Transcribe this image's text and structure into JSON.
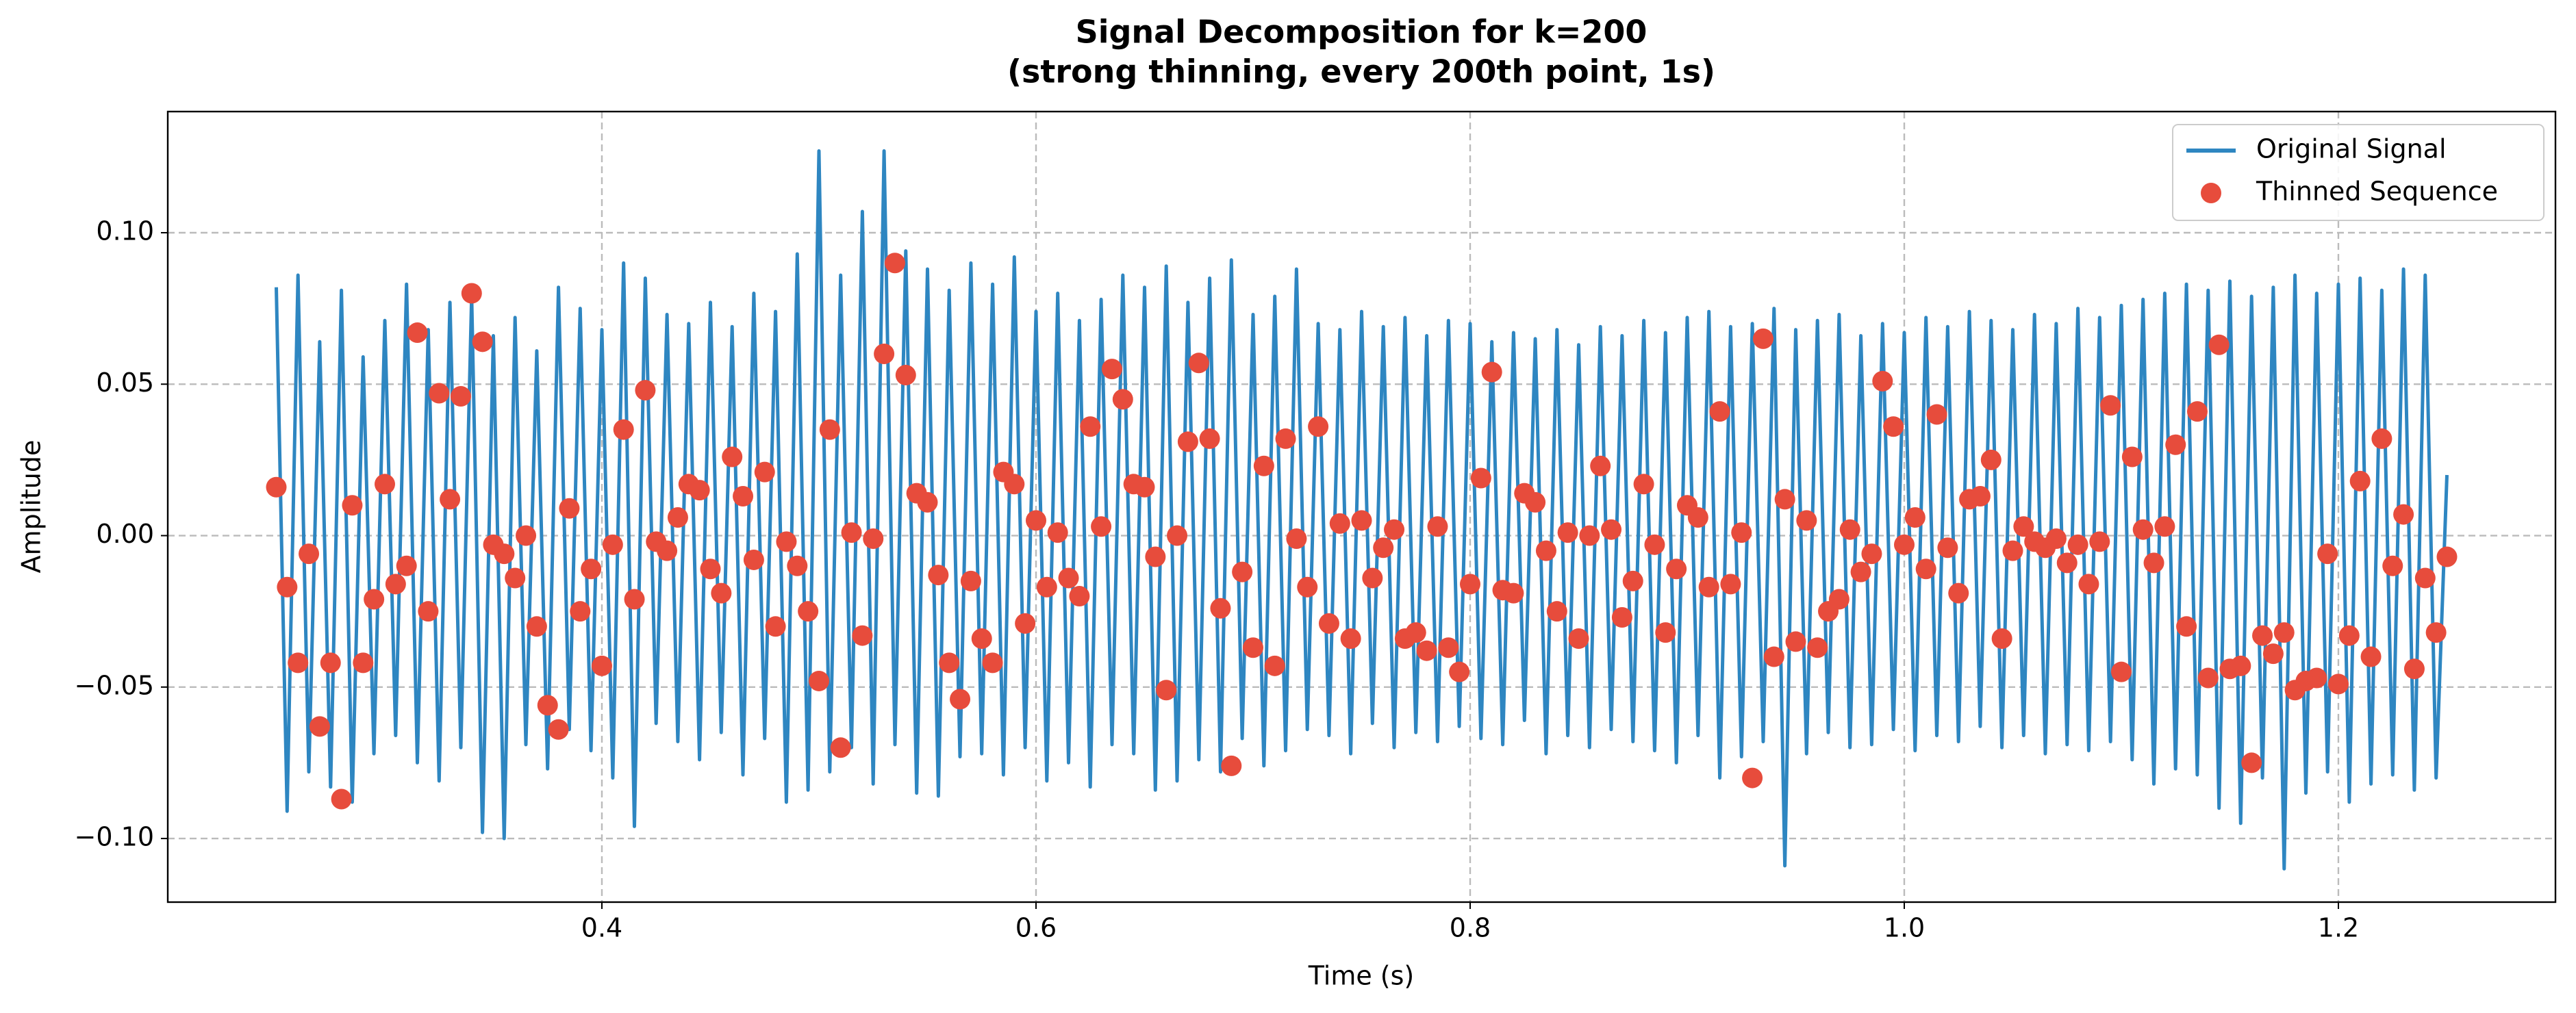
{
  "chart_data": {
    "type": "line-scatter",
    "title": "Signal Decomposition for k=200",
    "subtitle": "(strong thinning, every 200th point, 1s)",
    "x_label": "Time (s)",
    "y_label": "Amplitude",
    "x": [
      0.25,
      0.255,
      0.26,
      0.265,
      0.27,
      0.275,
      0.28,
      0.285,
      0.29,
      0.295,
      0.3,
      0.305,
      0.31,
      0.315,
      0.32,
      0.325,
      0.33,
      0.335,
      0.34,
      0.345,
      0.35,
      0.355,
      0.36,
      0.365,
      0.37,
      0.375,
      0.38,
      0.385,
      0.39,
      0.395,
      0.4,
      0.405,
      0.41,
      0.415,
      0.42,
      0.425,
      0.43,
      0.435,
      0.44,
      0.445,
      0.45,
      0.455,
      0.46,
      0.465,
      0.47,
      0.475,
      0.48,
      0.485,
      0.49,
      0.495,
      0.5,
      0.505,
      0.51,
      0.515,
      0.52,
      0.525,
      0.53,
      0.535,
      0.54,
      0.545,
      0.55,
      0.555,
      0.56,
      0.565,
      0.57,
      0.575,
      0.58,
      0.585,
      0.59,
      0.595,
      0.6,
      0.605,
      0.61,
      0.615,
      0.62,
      0.625,
      0.63,
      0.635,
      0.64,
      0.645,
      0.65,
      0.655,
      0.66,
      0.665,
      0.67,
      0.675,
      0.68,
      0.685,
      0.69,
      0.695,
      0.7,
      0.705,
      0.71,
      0.715,
      0.72,
      0.725,
      0.73,
      0.735,
      0.74,
      0.745,
      0.75,
      0.755,
      0.76,
      0.765,
      0.77,
      0.775,
      0.78,
      0.785,
      0.79,
      0.795,
      0.8,
      0.805,
      0.81,
      0.815,
      0.82,
      0.825,
      0.83,
      0.835,
      0.84,
      0.845,
      0.85,
      0.855,
      0.86,
      0.865,
      0.87,
      0.875,
      0.88,
      0.885,
      0.89,
      0.895,
      0.9,
      0.905,
      0.91,
      0.915,
      0.92,
      0.925,
      0.93,
      0.935,
      0.94,
      0.945,
      0.95,
      0.955,
      0.96,
      0.965,
      0.97,
      0.975,
      0.98,
      0.985,
      0.99,
      0.995,
      1.0,
      1.005,
      1.01,
      1.015,
      1.02,
      1.025,
      1.03,
      1.035,
      1.04,
      1.045,
      1.05,
      1.055,
      1.06,
      1.065,
      1.07,
      1.075,
      1.08,
      1.085,
      1.09,
      1.095,
      1.1,
      1.105,
      1.11,
      1.115,
      1.12,
      1.125,
      1.13,
      1.135,
      1.14,
      1.145,
      1.15,
      1.155,
      1.16,
      1.165,
      1.17,
      1.175,
      1.18,
      1.185,
      1.19,
      1.195,
      1.2,
      1.205,
      1.21,
      1.215,
      1.22,
      1.225,
      1.23,
      1.235,
      1.24,
      1.245,
      1.25
    ],
    "series": [
      {
        "name": "Original Signal",
        "color": "#2e86c1",
        "kind": "line",
        "values": [
          0.082,
          -0.091,
          0.086,
          -0.078,
          0.064,
          -0.083,
          0.081,
          -0.088,
          0.059,
          -0.072,
          0.071,
          -0.066,
          0.083,
          -0.075,
          0.068,
          -0.081,
          0.077,
          -0.07,
          0.079,
          -0.098,
          0.066,
          -0.1,
          0.072,
          -0.069,
          0.061,
          -0.077,
          0.082,
          -0.064,
          0.075,
          -0.071,
          0.068,
          -0.08,
          0.09,
          -0.096,
          0.085,
          -0.062,
          0.073,
          -0.068,
          0.07,
          -0.074,
          0.077,
          -0.065,
          0.069,
          -0.079,
          0.08,
          -0.067,
          0.074,
          -0.088,
          0.093,
          -0.084,
          0.127,
          -0.078,
          0.086,
          -0.07,
          0.107,
          -0.082,
          0.127,
          -0.069,
          0.094,
          -0.085,
          0.088,
          -0.086,
          0.081,
          -0.073,
          0.09,
          -0.072,
          0.083,
          -0.079,
          0.092,
          -0.07,
          0.074,
          -0.081,
          0.08,
          -0.075,
          0.071,
          -0.083,
          0.078,
          -0.069,
          0.086,
          -0.072,
          0.082,
          -0.084,
          0.089,
          -0.081,
          0.077,
          -0.074,
          0.085,
          -0.078,
          0.091,
          -0.067,
          0.073,
          -0.076,
          0.079,
          -0.071,
          0.088,
          -0.064,
          0.07,
          -0.066,
          0.068,
          -0.072,
          0.074,
          -0.062,
          0.069,
          -0.07,
          0.072,
          -0.065,
          0.066,
          -0.068,
          0.071,
          -0.063,
          0.07,
          -0.067,
          0.064,
          -0.069,
          0.067,
          -0.061,
          0.065,
          -0.072,
          0.068,
          -0.066,
          0.063,
          -0.07,
          0.069,
          -0.064,
          0.066,
          -0.068,
          0.071,
          -0.071,
          0.067,
          -0.075,
          0.072,
          -0.066,
          0.074,
          -0.08,
          0.069,
          -0.073,
          0.07,
          -0.068,
          0.075,
          -0.109,
          0.068,
          -0.072,
          0.071,
          -0.065,
          0.073,
          -0.07,
          0.066,
          -0.069,
          0.07,
          -0.064,
          0.067,
          -0.071,
          0.072,
          -0.066,
          0.069,
          -0.068,
          0.074,
          -0.063,
          0.071,
          -0.07,
          0.068,
          -0.066,
          0.073,
          -0.072,
          0.07,
          -0.069,
          0.075,
          -0.071,
          0.072,
          -0.068,
          0.076,
          -0.074,
          0.078,
          -0.082,
          0.08,
          -0.077,
          0.083,
          -0.079,
          0.081,
          -0.09,
          0.084,
          -0.095,
          0.079,
          -0.08,
          0.082,
          -0.11,
          0.086,
          -0.085,
          0.08,
          -0.078,
          0.083,
          -0.088,
          0.085,
          -0.082,
          0.081,
          -0.079,
          0.088,
          -0.084,
          0.086,
          -0.08,
          0.02
        ]
      },
      {
        "name": "Thinned Sequence",
        "color": "#e74c3c",
        "kind": "scatter",
        "values": [
          0.016,
          -0.017,
          -0.042,
          -0.006,
          -0.063,
          -0.042,
          -0.087,
          0.01,
          -0.042,
          -0.021,
          0.017,
          -0.016,
          -0.01,
          0.067,
          -0.025,
          0.047,
          0.012,
          0.046,
          0.08,
          0.064,
          -0.003,
          -0.006,
          -0.014,
          0.0,
          -0.03,
          -0.056,
          -0.064,
          0.009,
          -0.025,
          -0.011,
          -0.043,
          -0.003,
          0.035,
          -0.021,
          0.048,
          -0.002,
          -0.005,
          0.006,
          0.017,
          0.015,
          -0.011,
          -0.019,
          0.026,
          0.013,
          -0.008,
          0.021,
          -0.03,
          -0.002,
          -0.01,
          -0.025,
          -0.048,
          0.035,
          -0.07,
          0.001,
          -0.033,
          -0.001,
          0.06,
          0.09,
          0.053,
          0.014,
          0.011,
          -0.013,
          -0.042,
          -0.054,
          -0.015,
          -0.034,
          -0.042,
          0.021,
          0.017,
          -0.029,
          0.005,
          -0.017,
          0.001,
          -0.014,
          -0.02,
          0.036,
          0.003,
          0.055,
          0.045,
          0.017,
          0.016,
          -0.007,
          -0.051,
          0.0,
          0.031,
          0.057,
          0.032,
          -0.024,
          -0.076,
          -0.012,
          -0.037,
          0.023,
          -0.043,
          0.032,
          -0.001,
          -0.017,
          0.036,
          -0.029,
          0.004,
          -0.034,
          0.005,
          -0.014,
          -0.004,
          0.002,
          -0.034,
          -0.032,
          -0.038,
          0.003,
          -0.037,
          -0.045,
          -0.016,
          0.019,
          0.054,
          -0.018,
          -0.019,
          0.014,
          0.011,
          -0.005,
          -0.025,
          0.001,
          -0.034,
          0.0,
          0.023,
          0.002,
          -0.027,
          -0.015,
          0.017,
          -0.003,
          -0.032,
          -0.011,
          0.01,
          0.006,
          -0.017,
          0.041,
          -0.016,
          0.001,
          -0.08,
          0.065,
          -0.04,
          0.012,
          -0.035,
          0.005,
          -0.037,
          -0.025,
          -0.021,
          0.002,
          -0.012,
          -0.006,
          0.051,
          0.036,
          -0.003,
          0.006,
          -0.011,
          0.04,
          -0.004,
          -0.019,
          0.012,
          0.013,
          0.025,
          -0.034,
          -0.005,
          0.003,
          -0.002,
          -0.004,
          -0.001,
          -0.009,
          -0.003,
          -0.016,
          -0.002,
          0.043,
          -0.045,
          0.026,
          0.002,
          -0.009,
          0.003,
          0.03,
          -0.03,
          0.041,
          -0.047,
          0.063,
          -0.044,
          -0.043,
          -0.075,
          -0.033,
          -0.039,
          -0.032,
          -0.051,
          -0.048,
          -0.047,
          -0.006,
          -0.049,
          -0.033,
          0.018,
          -0.04,
          0.032,
          -0.01,
          0.007,
          -0.044,
          -0.014,
          -0.032,
          -0.007
        ]
      }
    ],
    "xlim": [
      0.2,
      1.3
    ],
    "ylim": [
      -0.121,
      0.14
    ],
    "xticks": [
      0.4,
      0.6,
      0.8,
      {
        "value": 1,
        "label": "1.0"
      },
      1.2
    ],
    "yticks": [
      {
        "value": -0.1,
        "label": "−0.10"
      },
      {
        "value": -0.05,
        "label": "−0.05"
      },
      {
        "value": 0,
        "label": "0.00"
      },
      {
        "value": 0.05,
        "label": "0.05"
      },
      {
        "value": 0.1,
        "label": "0.10"
      }
    ],
    "grid": true,
    "legend": "upper-right"
  }
}
